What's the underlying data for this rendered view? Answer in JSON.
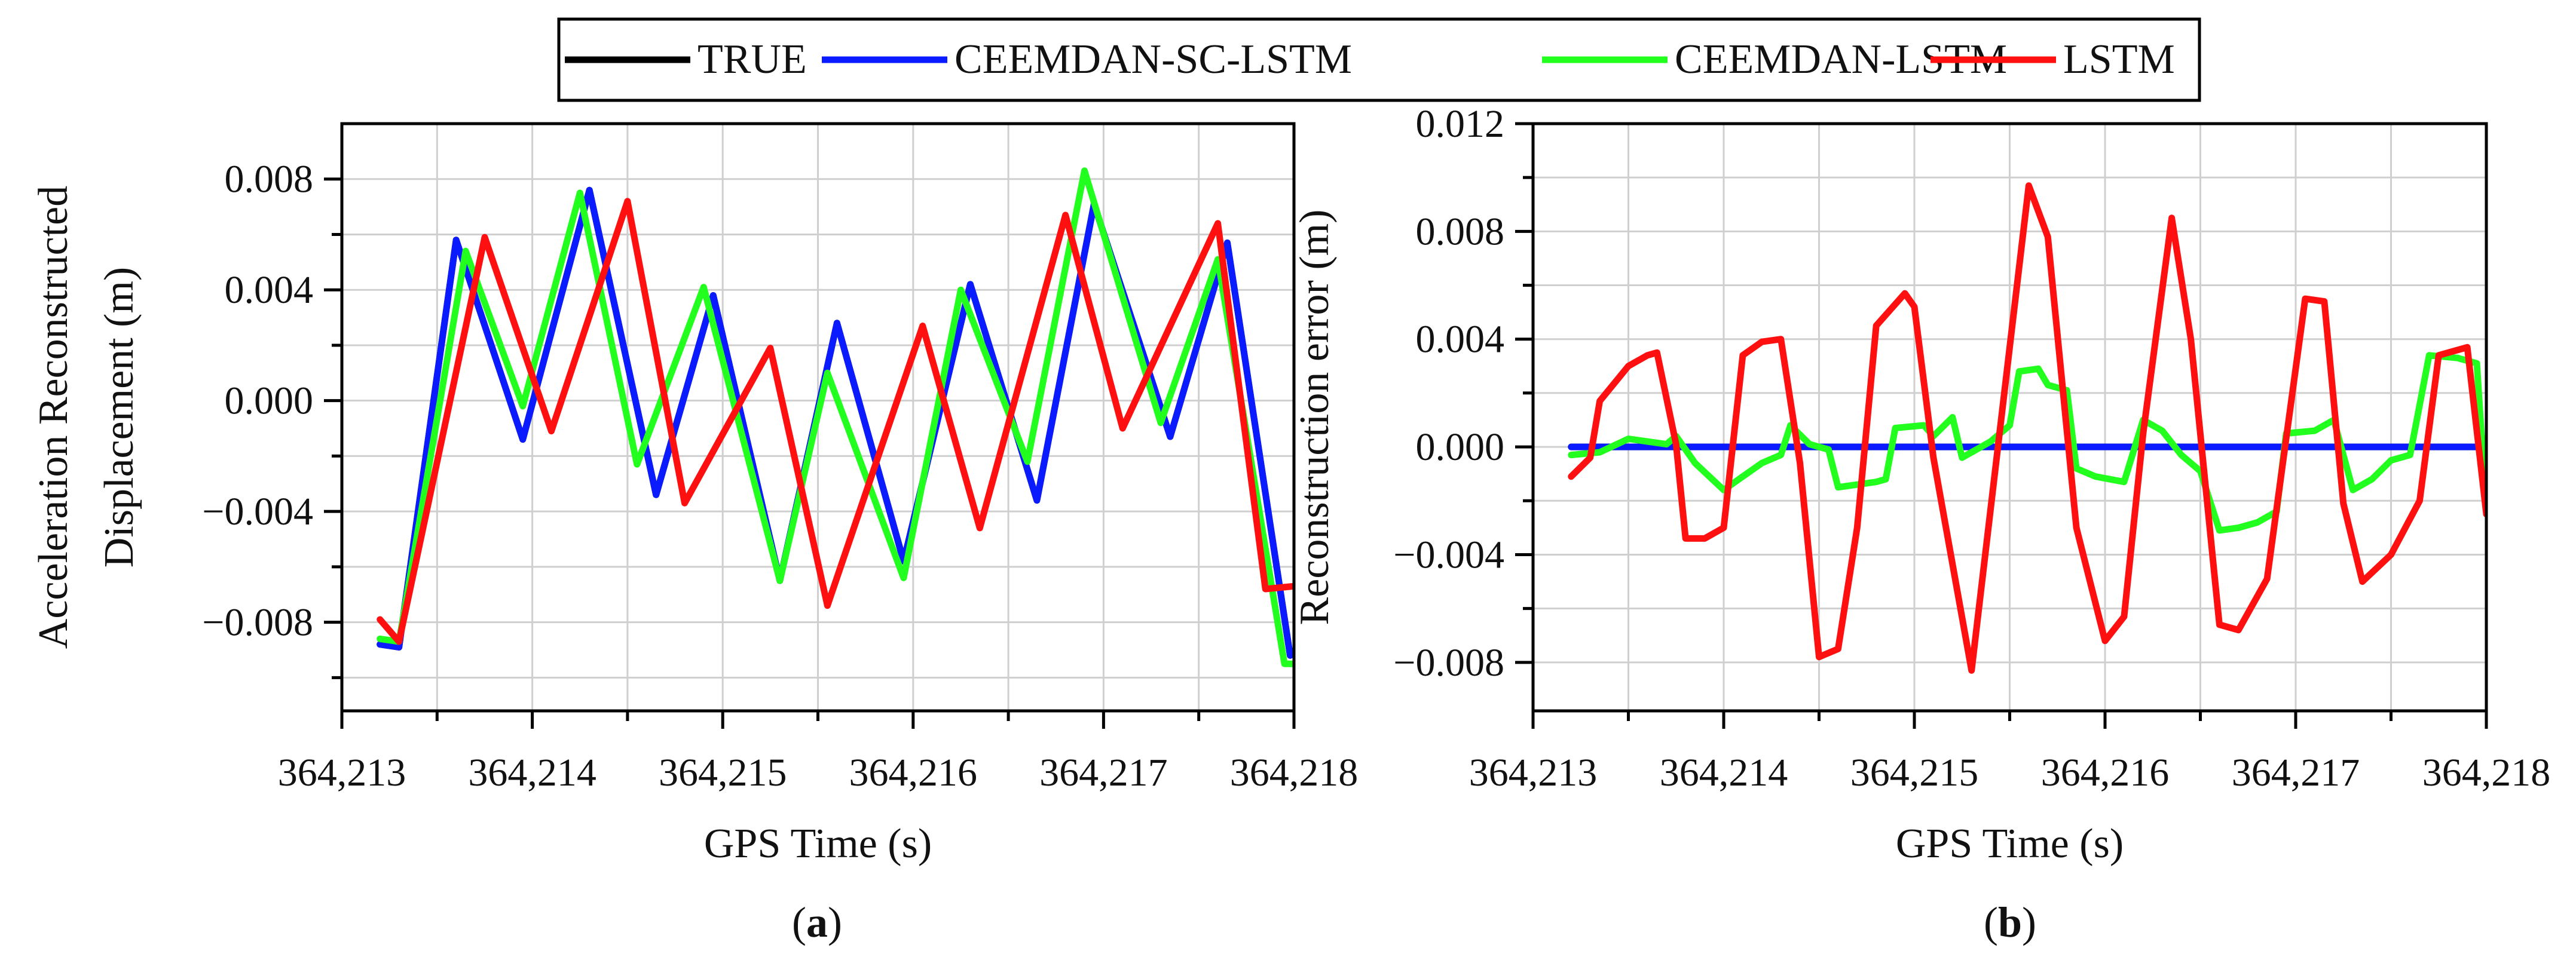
{
  "legend": {
    "entries": [
      {
        "label": "TRUE",
        "color": "#000000"
      },
      {
        "label": "CEEMDAN-SC-LSTM",
        "color": "#0a1bff"
      },
      {
        "label": "CEEMDAN-LSTM",
        "color": "#22ff1e"
      },
      {
        "label": "LSTM",
        "color": "#ff1010"
      }
    ]
  },
  "chart_data": [
    {
      "type": "line",
      "panel_label": "(a)",
      "panel_letter": "a",
      "xlabel": "GPS Time (s)",
      "ylabel": [
        "Acceleration Reconstructed",
        "Displacement (m)"
      ],
      "xlim": [
        364213,
        364218
      ],
      "ylim": [
        -0.0112,
        0.01
      ],
      "xticks": [
        364213,
        364214,
        364215,
        364216,
        364217,
        364218
      ],
      "xtick_labels": [
        "364,213",
        "364,214",
        "364,215",
        "364,216",
        "364,217",
        "364,218"
      ],
      "yticks": [
        -0.008,
        -0.004,
        0.0,
        0.004,
        0.008
      ],
      "ytick_labels": [
        "−0.008",
        "−0.004",
        "0.000",
        "0.004",
        "0.008"
      ],
      "grid": true,
      "series": [
        {
          "name": "TRUE",
          "color": "#000000",
          "points": [
            [
              364213.2,
              -0.0088
            ],
            [
              364213.3,
              -0.0089
            ],
            [
              364213.6,
              0.0058
            ],
            [
              364213.95,
              -0.0014
            ],
            [
              364214.3,
              0.0076
            ],
            [
              364214.65,
              -0.0034
            ],
            [
              364214.95,
              0.0038
            ],
            [
              364215.3,
              -0.0065
            ],
            [
              364215.6,
              0.0028
            ],
            [
              364215.95,
              -0.0058
            ],
            [
              364216.3,
              0.0042
            ],
            [
              364216.65,
              -0.0036
            ],
            [
              364216.95,
              0.0071
            ],
            [
              364217.35,
              -0.0013
            ],
            [
              364217.65,
              0.0057
            ],
            [
              364217.98,
              -0.0092
            ]
          ]
        },
        {
          "name": "CEEMDAN-SC-LSTM",
          "color": "#0a1bff",
          "points": [
            [
              364213.2,
              -0.0088
            ],
            [
              364213.3,
              -0.0089
            ],
            [
              364213.6,
              0.0058
            ],
            [
              364213.95,
              -0.0014
            ],
            [
              364214.3,
              0.0076
            ],
            [
              364214.65,
              -0.0034
            ],
            [
              364214.95,
              0.0038
            ],
            [
              364215.3,
              -0.0065
            ],
            [
              364215.6,
              0.0028
            ],
            [
              364215.95,
              -0.0058
            ],
            [
              364216.3,
              0.0042
            ],
            [
              364216.65,
              -0.0036
            ],
            [
              364216.95,
              0.0071
            ],
            [
              364217.35,
              -0.0013
            ],
            [
              364217.65,
              0.0057
            ],
            [
              364217.98,
              -0.0092
            ]
          ]
        },
        {
          "name": "CEEMDAN-LSTM",
          "color": "#22ff1e",
          "points": [
            [
              364213.2,
              -0.0086
            ],
            [
              364213.3,
              -0.0087
            ],
            [
              364213.65,
              0.0054
            ],
            [
              364213.95,
              -0.0002
            ],
            [
              364214.25,
              0.0075
            ],
            [
              364214.55,
              -0.0023
            ],
            [
              364214.9,
              0.0041
            ],
            [
              364215.3,
              -0.0065
            ],
            [
              364215.55,
              0.001
            ],
            [
              364215.95,
              -0.0064
            ],
            [
              364216.25,
              0.004
            ],
            [
              364216.6,
              -0.0022
            ],
            [
              364216.9,
              0.0083
            ],
            [
              364217.3,
              -0.0008
            ],
            [
              364217.6,
              0.0051
            ],
            [
              364217.95,
              -0.0095
            ],
            [
              364218,
              -0.0095
            ]
          ]
        },
        {
          "name": "LSTM",
          "color": "#ff1010",
          "points": [
            [
              364213.2,
              -0.0079
            ],
            [
              364213.3,
              -0.0087
            ],
            [
              364213.75,
              0.0059
            ],
            [
              364214.1,
              -0.0011
            ],
            [
              364214.5,
              0.0072
            ],
            [
              364214.8,
              -0.0037
            ],
            [
              364215.25,
              0.0019
            ],
            [
              364215.55,
              -0.0074
            ],
            [
              364216.05,
              0.0027
            ],
            [
              364216.35,
              -0.0046
            ],
            [
              364216.8,
              0.0067
            ],
            [
              364217.1,
              -0.001
            ],
            [
              364217.6,
              0.0064
            ],
            [
              364217.85,
              -0.0068
            ],
            [
              364218,
              -0.0067
            ]
          ]
        }
      ]
    },
    {
      "type": "line",
      "panel_label": "(b)",
      "panel_letter": "b",
      "xlabel": "GPS Time (s)",
      "ylabel": [
        "Reconstruction error (m)"
      ],
      "xlim": [
        364213,
        364218
      ],
      "ylim": [
        -0.0098,
        0.012
      ],
      "xticks": [
        364213,
        364214,
        364215,
        364216,
        364217,
        364218
      ],
      "xtick_labels": [
        "364,213",
        "364,214",
        "364,215",
        "364,216",
        "364,217",
        "364,218"
      ],
      "yticks": [
        -0.008,
        -0.004,
        0.0,
        0.004,
        0.008,
        0.012
      ],
      "ytick_labels": [
        "−0.008",
        "−0.004",
        "0.000",
        "0.004",
        "0.008",
        "0.012"
      ],
      "grid": true,
      "series": [
        {
          "name": "TRUE",
          "color": "#000000",
          "points": [
            [
              364213.2,
              0
            ],
            [
              364218,
              0
            ]
          ]
        },
        {
          "name": "CEEMDAN-SC-LSTM",
          "color": "#0a1bff",
          "points": [
            [
              364213.2,
              0
            ],
            [
              364218,
              0
            ]
          ]
        },
        {
          "name": "CEEMDAN-LSTM",
          "color": "#22ff1e",
          "points": [
            [
              364213.2,
              -0.0003
            ],
            [
              364213.35,
              -0.0002
            ],
            [
              364213.5,
              0.0003
            ],
            [
              364213.7,
              0.0001
            ],
            [
              364213.75,
              0.0004
            ],
            [
              364213.85,
              -0.0006
            ],
            [
              364214.0,
              -0.0016
            ],
            [
              364214.2,
              -0.0006
            ],
            [
              364214.3,
              -0.0003
            ],
            [
              364214.35,
              0.0008
            ],
            [
              364214.45,
              0.0001
            ],
            [
              364214.55,
              -0.0001
            ],
            [
              364214.6,
              -0.0015
            ],
            [
              364214.8,
              -0.0013
            ],
            [
              364214.85,
              -0.0012
            ],
            [
              364214.9,
              0.0007
            ],
            [
              364215.05,
              0.0008
            ],
            [
              364215.1,
              0.0004
            ],
            [
              364215.2,
              0.0011
            ],
            [
              364215.25,
              -0.0004
            ],
            [
              364215.4,
              0.0002
            ],
            [
              364215.5,
              0.0008
            ],
            [
              364215.55,
              0.0028
            ],
            [
              364215.65,
              0.0029
            ],
            [
              364215.7,
              0.0023
            ],
            [
              364215.8,
              0.0021
            ],
            [
              364215.85,
              -0.0008
            ],
            [
              364215.95,
              -0.0011
            ],
            [
              364216.1,
              -0.0013
            ],
            [
              364216.2,
              0.001
            ],
            [
              364216.3,
              0.0006
            ],
            [
              364216.4,
              -0.0003
            ],
            [
              364216.5,
              -0.0009
            ],
            [
              364216.6,
              -0.0031
            ],
            [
              364216.7,
              -0.003
            ],
            [
              364216.8,
              -0.0028
            ],
            [
              364216.9,
              -0.0024
            ],
            [
              364216.95,
              0.0005
            ],
            [
              364217.1,
              0.0006
            ],
            [
              364217.2,
              0.001
            ],
            [
              364217.3,
              -0.0016
            ],
            [
              364217.4,
              -0.0012
            ],
            [
              364217.5,
              -0.0005
            ],
            [
              364217.6,
              -0.0003
            ],
            [
              364217.7,
              0.0034
            ],
            [
              364217.85,
              0.0033
            ],
            [
              364217.95,
              0.0031
            ],
            [
              364218,
              -0.0024
            ]
          ]
        },
        {
          "name": "LSTM",
          "color": "#ff1010",
          "points": [
            [
              364213.2,
              -0.0011
            ],
            [
              364213.3,
              -0.0004
            ],
            [
              364213.35,
              0.0017
            ],
            [
              364213.5,
              0.003
            ],
            [
              364213.6,
              0.0034
            ],
            [
              364213.65,
              0.0035
            ],
            [
              364213.75,
              0.0001
            ],
            [
              364213.8,
              -0.0034
            ],
            [
              364213.9,
              -0.0034
            ],
            [
              364214.0,
              -0.003
            ],
            [
              364214.1,
              0.0034
            ],
            [
              364214.2,
              0.0039
            ],
            [
              364214.3,
              0.004
            ],
            [
              364214.4,
              -0.0006
            ],
            [
              364214.5,
              -0.0078
            ],
            [
              364214.6,
              -0.0075
            ],
            [
              364214.7,
              -0.003
            ],
            [
              364214.8,
              0.0045
            ],
            [
              364214.95,
              0.0057
            ],
            [
              364215.0,
              0.0052
            ],
            [
              364215.1,
              -0.0004
            ],
            [
              364215.3,
              -0.0083
            ],
            [
              364215.4,
              -0.0023
            ],
            [
              364215.6,
              0.0097
            ],
            [
              364215.7,
              0.0078
            ],
            [
              364215.85,
              -0.003
            ],
            [
              364216.0,
              -0.0072
            ],
            [
              364216.1,
              -0.0063
            ],
            [
              364216.2,
              0.0005
            ],
            [
              364216.35,
              0.0085
            ],
            [
              364216.45,
              0.004
            ],
            [
              364216.6,
              -0.0066
            ],
            [
              364216.7,
              -0.0068
            ],
            [
              364216.85,
              -0.0049
            ],
            [
              364217.05,
              0.0055
            ],
            [
              364217.15,
              0.0054
            ],
            [
              364217.25,
              -0.0021
            ],
            [
              364217.35,
              -0.005
            ],
            [
              364217.5,
              -0.004
            ],
            [
              364217.65,
              -0.002
            ],
            [
              364217.75,
              0.0034
            ],
            [
              364217.9,
              0.0037
            ],
            [
              364218,
              -0.0025
            ]
          ]
        }
      ]
    }
  ]
}
